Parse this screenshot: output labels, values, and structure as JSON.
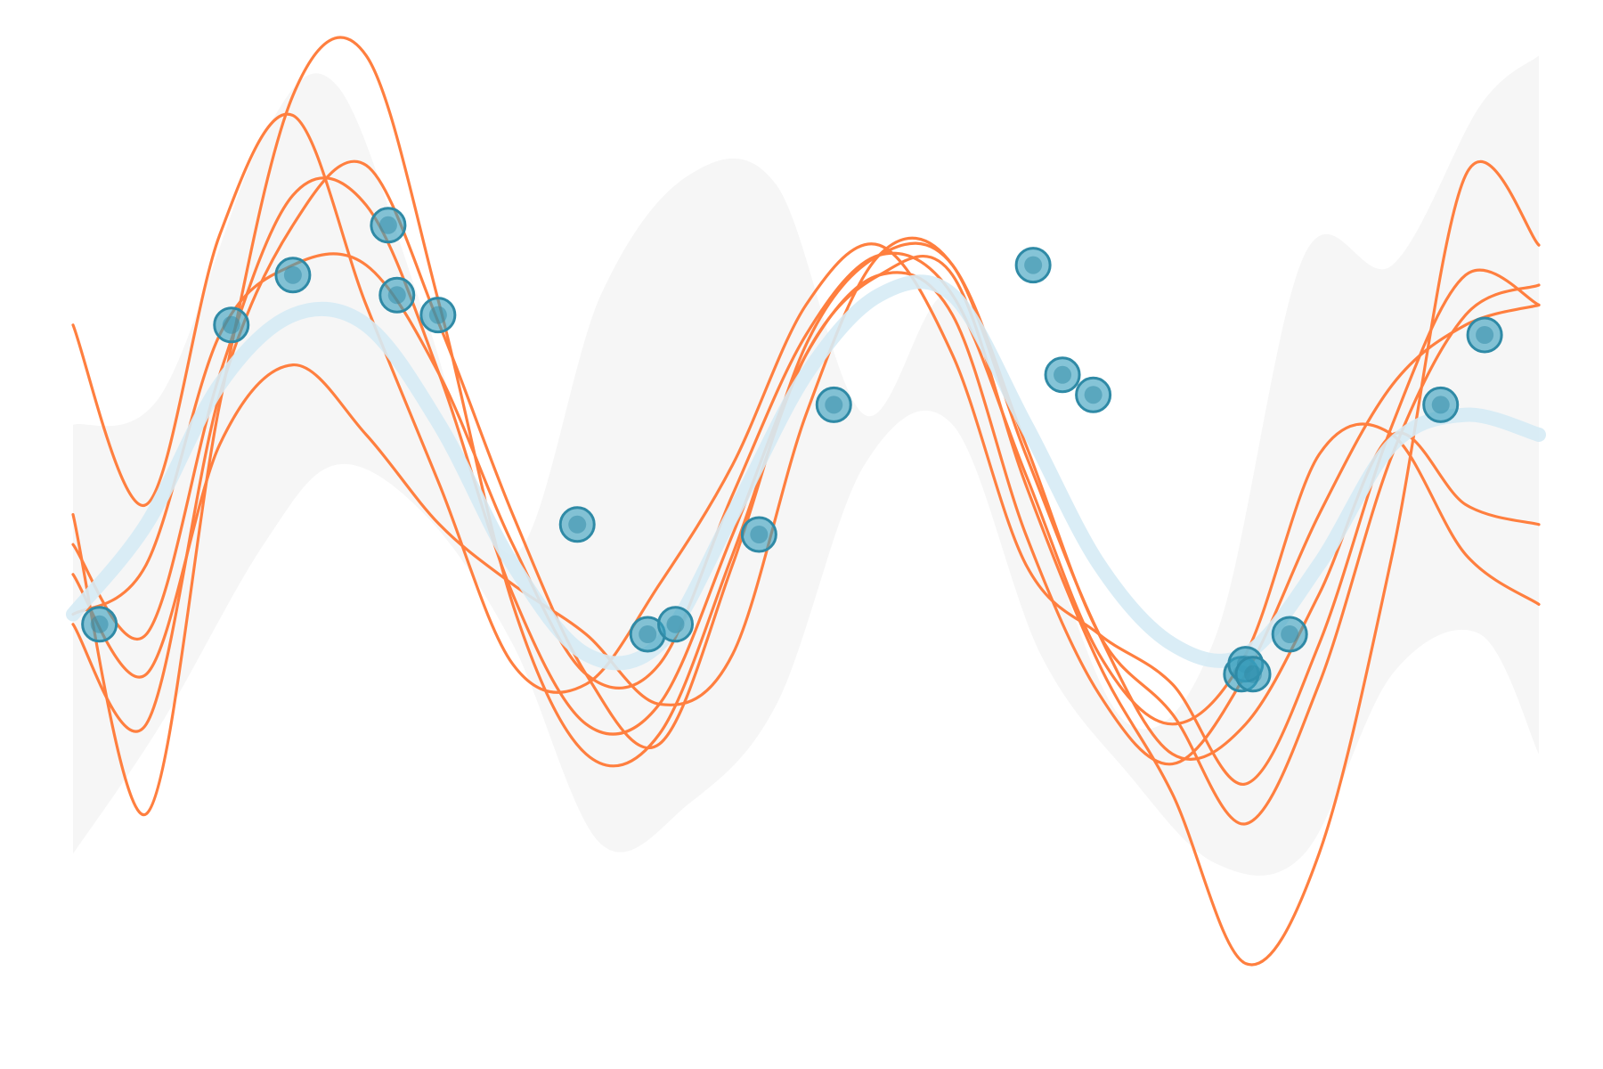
{
  "chart_data": {
    "type": "line",
    "title": "",
    "xlabel": "",
    "ylabel": "",
    "axes_visible": false,
    "grid": false,
    "legend": "none",
    "xlim": [
      0,
      1
    ],
    "ylim": [
      0,
      1
    ],
    "colors": {
      "band": "#f2f2f2",
      "samples": "#ff7f3f",
      "mean": "#d6ebf5",
      "points_fill": "#3a9fbf",
      "points_stroke": "#2f8aa6"
    },
    "uncertainty_band": {
      "x": [
        0.0,
        0.06,
        0.13,
        0.18,
        0.24,
        0.3,
        0.36,
        0.42,
        0.48,
        0.54,
        0.6,
        0.66,
        0.72,
        0.78,
        0.84,
        0.9,
        0.96,
        1.0
      ],
      "upper": [
        0.61,
        0.64,
        0.9,
        0.95,
        0.72,
        0.48,
        0.74,
        0.86,
        0.85,
        0.62,
        0.74,
        0.51,
        0.31,
        0.4,
        0.78,
        0.77,
        0.93,
        0.98
      ],
      "lower": [
        0.18,
        0.31,
        0.49,
        0.57,
        0.52,
        0.39,
        0.19,
        0.23,
        0.33,
        0.57,
        0.61,
        0.38,
        0.26,
        0.17,
        0.18,
        0.36,
        0.4,
        0.28
      ]
    },
    "series": [
      {
        "role": "mean",
        "x": [
          0.0,
          0.05,
          0.1,
          0.15,
          0.2,
          0.25,
          0.3,
          0.35,
          0.4,
          0.45,
          0.5,
          0.55,
          0.6,
          0.65,
          0.7,
          0.75,
          0.8,
          0.85,
          0.9,
          0.95,
          1.0
        ],
        "values": [
          0.42,
          0.51,
          0.65,
          0.72,
          0.71,
          0.61,
          0.47,
          0.38,
          0.39,
          0.52,
          0.66,
          0.74,
          0.74,
          0.61,
          0.47,
          0.39,
          0.38,
          0.47,
          0.59,
          0.62,
          0.6
        ]
      },
      {
        "role": "sample",
        "x": [
          0.0,
          0.05,
          0.1,
          0.15,
          0.2,
          0.25,
          0.3,
          0.35,
          0.4,
          0.45,
          0.5,
          0.55,
          0.6,
          0.65,
          0.7,
          0.75,
          0.8,
          0.85,
          0.9,
          0.95,
          1.0
        ],
        "values": [
          0.71,
          0.53,
          0.8,
          0.92,
          0.73,
          0.55,
          0.37,
          0.35,
          0.45,
          0.57,
          0.73,
          0.79,
          0.68,
          0.47,
          0.4,
          0.35,
          0.25,
          0.39,
          0.61,
          0.76,
          0.73
        ]
      },
      {
        "role": "sample",
        "x": [
          0.0,
          0.05,
          0.1,
          0.15,
          0.2,
          0.25,
          0.3,
          0.35,
          0.4,
          0.45,
          0.5,
          0.55,
          0.6,
          0.65,
          0.7,
          0.75,
          0.8,
          0.85,
          0.9,
          0.95,
          1.0
        ],
        "values": [
          0.49,
          0.4,
          0.66,
          0.84,
          0.83,
          0.66,
          0.44,
          0.31,
          0.33,
          0.5,
          0.68,
          0.76,
          0.72,
          0.5,
          0.34,
          0.27,
          0.36,
          0.52,
          0.65,
          0.71,
          0.73
        ]
      },
      {
        "role": "sample",
        "x": [
          0.0,
          0.05,
          0.1,
          0.15,
          0.2,
          0.25,
          0.3,
          0.35,
          0.4,
          0.45,
          0.5,
          0.55,
          0.6,
          0.65,
          0.7,
          0.75,
          0.8,
          0.85,
          0.9,
          0.95,
          1.0
        ],
        "values": [
          0.42,
          0.47,
          0.7,
          0.77,
          0.77,
          0.66,
          0.49,
          0.36,
          0.37,
          0.54,
          0.7,
          0.78,
          0.74,
          0.56,
          0.38,
          0.31,
          0.38,
          0.58,
          0.6,
          0.48,
          0.43
        ]
      },
      {
        "role": "sample",
        "x": [
          0.0,
          0.05,
          0.1,
          0.15,
          0.2,
          0.25,
          0.3,
          0.35,
          0.4,
          0.45,
          0.5,
          0.55,
          0.6,
          0.65,
          0.7,
          0.75,
          0.8,
          0.85,
          0.9,
          0.95,
          1.0
        ],
        "values": [
          0.46,
          0.36,
          0.59,
          0.67,
          0.6,
          0.51,
          0.45,
          0.4,
          0.33,
          0.38,
          0.62,
          0.78,
          0.77,
          0.58,
          0.4,
          0.28,
          0.31,
          0.44,
          0.6,
          0.53,
          0.51
        ]
      },
      {
        "role": "sample",
        "x": [
          0.0,
          0.05,
          0.1,
          0.15,
          0.2,
          0.25,
          0.3,
          0.35,
          0.4,
          0.45,
          0.5,
          0.55,
          0.6,
          0.65,
          0.7,
          0.75,
          0.8,
          0.85,
          0.9,
          0.95,
          1.0
        ],
        "values": [
          0.52,
          0.22,
          0.63,
          0.94,
          0.98,
          0.73,
          0.43,
          0.28,
          0.3,
          0.48,
          0.68,
          0.76,
          0.76,
          0.55,
          0.37,
          0.24,
          0.07,
          0.18,
          0.48,
          0.86,
          0.79
        ]
      },
      {
        "role": "sample",
        "x": [
          0.0,
          0.05,
          0.1,
          0.15,
          0.2,
          0.25,
          0.3,
          0.35,
          0.4,
          0.45,
          0.5,
          0.55,
          0.6,
          0.65,
          0.7,
          0.75,
          0.8,
          0.85,
          0.9,
          0.95,
          1.0
        ],
        "values": [
          0.41,
          0.31,
          0.64,
          0.81,
          0.87,
          0.71,
          0.52,
          0.36,
          0.29,
          0.47,
          0.69,
          0.78,
          0.77,
          0.59,
          0.4,
          0.32,
          0.21,
          0.35,
          0.58,
          0.72,
          0.75
        ]
      }
    ],
    "observations": {
      "x": [
        0.018,
        0.108,
        0.15,
        0.215,
        0.221,
        0.249,
        0.344,
        0.392,
        0.411,
        0.468,
        0.519,
        0.655,
        0.675,
        0.696,
        0.797,
        0.8,
        0.805,
        0.83,
        0.933,
        0.963
      ],
      "y": [
        0.41,
        0.71,
        0.76,
        0.81,
        0.74,
        0.72,
        0.51,
        0.4,
        0.41,
        0.5,
        0.63,
        0.77,
        0.66,
        0.64,
        0.36,
        0.37,
        0.36,
        0.4,
        0.63,
        0.7
      ]
    }
  }
}
